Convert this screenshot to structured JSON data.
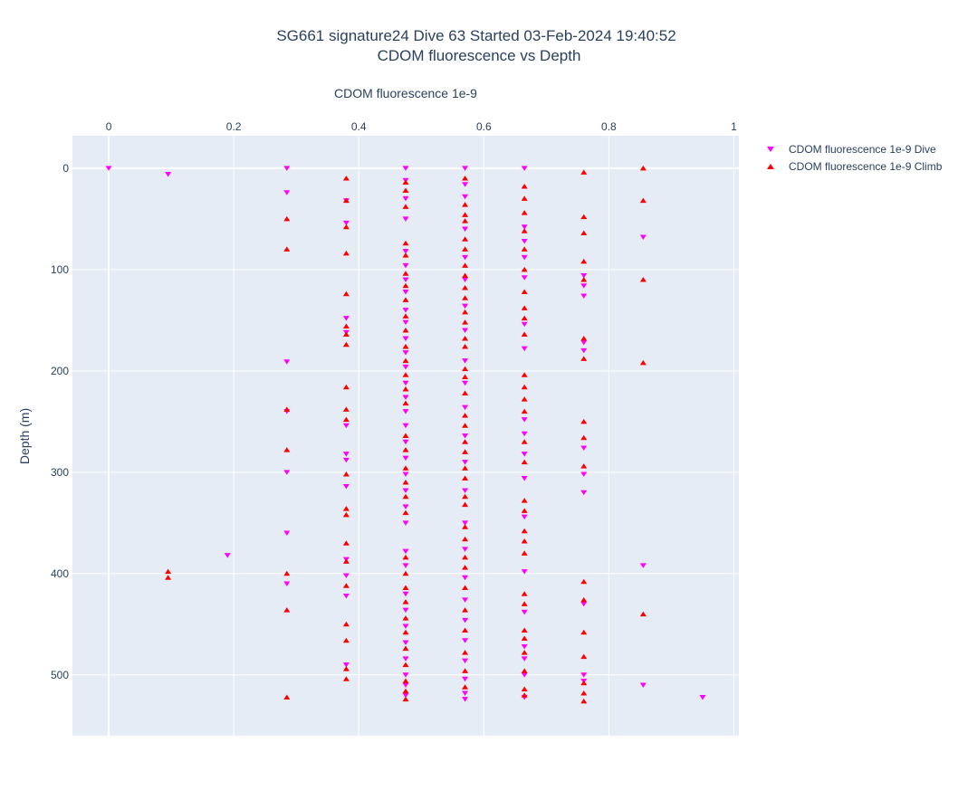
{
  "chart_data": {
    "type": "scatter",
    "title": [
      "SG661 signature24 Dive 63 Started 03-Feb-2024 19:40:52",
      "CDOM fluorescence vs Depth"
    ],
    "xlabel": "CDOM fluorescence 1e-9",
    "ylabel": "Depth (m)",
    "xlim": [
      -0.058,
      1.008
    ],
    "ylim": [
      560,
      -32
    ],
    "x_axis_position": "top",
    "y_reversed": true,
    "grid": true,
    "legend_position": "top-right",
    "xticks": [
      0,
      0.2,
      0.4,
      0.6,
      0.8,
      1
    ],
    "xtick_labels": [
      "0",
      "0.2",
      "0.4",
      "0.6",
      "0.8",
      "1"
    ],
    "yticks": [
      0,
      100,
      200,
      300,
      400,
      500
    ],
    "ytick_labels": [
      "0",
      "100",
      "200",
      "300",
      "400",
      "500"
    ],
    "series": [
      {
        "name": "CDOM fluorescence 1e-9 Dive",
        "color": "#ff00ff",
        "marker": "triangle-down",
        "points": [
          [
            0,
            0
          ],
          [
            0.095,
            6
          ],
          [
            0.19,
            382
          ],
          [
            0.285,
            0
          ],
          [
            0.285,
            24
          ],
          [
            0.285,
            191
          ],
          [
            0.285,
            240
          ],
          [
            0.285,
            300
          ],
          [
            0.285,
            360
          ],
          [
            0.285,
            410
          ],
          [
            0.38,
            32
          ],
          [
            0.38,
            54
          ],
          [
            0.38,
            148
          ],
          [
            0.38,
            162
          ],
          [
            0.38,
            254
          ],
          [
            0.38,
            282
          ],
          [
            0.38,
            288
          ],
          [
            0.38,
            314
          ],
          [
            0.38,
            386
          ],
          [
            0.38,
            402
          ],
          [
            0.38,
            422
          ],
          [
            0.38,
            490
          ],
          [
            0.475,
            0
          ],
          [
            0.475,
            12
          ],
          [
            0.475,
            30
          ],
          [
            0.475,
            50
          ],
          [
            0.475,
            82
          ],
          [
            0.475,
            96
          ],
          [
            0.475,
            110
          ],
          [
            0.475,
            122
          ],
          [
            0.475,
            140
          ],
          [
            0.475,
            152
          ],
          [
            0.475,
            168
          ],
          [
            0.475,
            182
          ],
          [
            0.475,
            196
          ],
          [
            0.475,
            212
          ],
          [
            0.475,
            226
          ],
          [
            0.475,
            240
          ],
          [
            0.475,
            254
          ],
          [
            0.475,
            270
          ],
          [
            0.475,
            286
          ],
          [
            0.475,
            302
          ],
          [
            0.475,
            318
          ],
          [
            0.475,
            334
          ],
          [
            0.475,
            350
          ],
          [
            0.475,
            378
          ],
          [
            0.475,
            392
          ],
          [
            0.475,
            420
          ],
          [
            0.475,
            436
          ],
          [
            0.475,
            452
          ],
          [
            0.475,
            468
          ],
          [
            0.475,
            484
          ],
          [
            0.475,
            500
          ],
          [
            0.475,
            510
          ],
          [
            0.475,
            520
          ],
          [
            0.57,
            0
          ],
          [
            0.57,
            16
          ],
          [
            0.57,
            28
          ],
          [
            0.57,
            60
          ],
          [
            0.57,
            88
          ],
          [
            0.57,
            110
          ],
          [
            0.57,
            136
          ],
          [
            0.57,
            160
          ],
          [
            0.57,
            190
          ],
          [
            0.57,
            212
          ],
          [
            0.57,
            236
          ],
          [
            0.57,
            264
          ],
          [
            0.57,
            290
          ],
          [
            0.57,
            318
          ],
          [
            0.57,
            350
          ],
          [
            0.57,
            376
          ],
          [
            0.57,
            404
          ],
          [
            0.57,
            426
          ],
          [
            0.57,
            446
          ],
          [
            0.57,
            466
          ],
          [
            0.57,
            486
          ],
          [
            0.57,
            504
          ],
          [
            0.57,
            518
          ],
          [
            0.57,
            524
          ],
          [
            0.665,
            0
          ],
          [
            0.665,
            58
          ],
          [
            0.665,
            72
          ],
          [
            0.665,
            88
          ],
          [
            0.665,
            108
          ],
          [
            0.665,
            154
          ],
          [
            0.665,
            178
          ],
          [
            0.665,
            248
          ],
          [
            0.665,
            262
          ],
          [
            0.665,
            282
          ],
          [
            0.665,
            306
          ],
          [
            0.665,
            344
          ],
          [
            0.665,
            398
          ],
          [
            0.665,
            438
          ],
          [
            0.665,
            472
          ],
          [
            0.665,
            484
          ],
          [
            0.665,
            500
          ],
          [
            0.665,
            522
          ],
          [
            0.76,
            106
          ],
          [
            0.76,
            116
          ],
          [
            0.76,
            126
          ],
          [
            0.76,
            172
          ],
          [
            0.76,
            180
          ],
          [
            0.76,
            276
          ],
          [
            0.76,
            302
          ],
          [
            0.76,
            320
          ],
          [
            0.76,
            430
          ],
          [
            0.76,
            500
          ],
          [
            0.76,
            506
          ],
          [
            0.855,
            68
          ],
          [
            0.855,
            392
          ],
          [
            0.855,
            510
          ],
          [
            0.95,
            522
          ]
        ]
      },
      {
        "name": "CDOM fluorescence 1e-9 Climb",
        "color": "#ff0000",
        "marker": "triangle-up",
        "points": [
          [
            0.095,
            398
          ],
          [
            0.095,
            404
          ],
          [
            0.285,
            50
          ],
          [
            0.285,
            80
          ],
          [
            0.285,
            238
          ],
          [
            0.285,
            278
          ],
          [
            0.285,
            400
          ],
          [
            0.285,
            436
          ],
          [
            0.285,
            522
          ],
          [
            0.38,
            10
          ],
          [
            0.38,
            32
          ],
          [
            0.38,
            58
          ],
          [
            0.38,
            84
          ],
          [
            0.38,
            124
          ],
          [
            0.38,
            156
          ],
          [
            0.38,
            164
          ],
          [
            0.38,
            174
          ],
          [
            0.38,
            216
          ],
          [
            0.38,
            238
          ],
          [
            0.38,
            248
          ],
          [
            0.38,
            302
          ],
          [
            0.38,
            336
          ],
          [
            0.38,
            342
          ],
          [
            0.38,
            370
          ],
          [
            0.38,
            388
          ],
          [
            0.38,
            412
          ],
          [
            0.38,
            450
          ],
          [
            0.38,
            466
          ],
          [
            0.38,
            494
          ],
          [
            0.38,
            504
          ],
          [
            0.475,
            14
          ],
          [
            0.475,
            22
          ],
          [
            0.475,
            38
          ],
          [
            0.475,
            74
          ],
          [
            0.475,
            86
          ],
          [
            0.475,
            104
          ],
          [
            0.475,
            116
          ],
          [
            0.475,
            130
          ],
          [
            0.475,
            146
          ],
          [
            0.475,
            160
          ],
          [
            0.475,
            176
          ],
          [
            0.475,
            190
          ],
          [
            0.475,
            204
          ],
          [
            0.475,
            218
          ],
          [
            0.475,
            232
          ],
          [
            0.475,
            264
          ],
          [
            0.475,
            278
          ],
          [
            0.475,
            296
          ],
          [
            0.475,
            310
          ],
          [
            0.475,
            324
          ],
          [
            0.475,
            340
          ],
          [
            0.475,
            384
          ],
          [
            0.475,
            400
          ],
          [
            0.475,
            414
          ],
          [
            0.475,
            428
          ],
          [
            0.475,
            444
          ],
          [
            0.475,
            458
          ],
          [
            0.475,
            474
          ],
          [
            0.475,
            490
          ],
          [
            0.475,
            506
          ],
          [
            0.475,
            516
          ],
          [
            0.475,
            524
          ],
          [
            0.57,
            10
          ],
          [
            0.57,
            36
          ],
          [
            0.57,
            46
          ],
          [
            0.57,
            52
          ],
          [
            0.57,
            70
          ],
          [
            0.57,
            80
          ],
          [
            0.57,
            96
          ],
          [
            0.57,
            106
          ],
          [
            0.57,
            118
          ],
          [
            0.57,
            128
          ],
          [
            0.57,
            142
          ],
          [
            0.57,
            152
          ],
          [
            0.57,
            168
          ],
          [
            0.57,
            176
          ],
          [
            0.57,
            198
          ],
          [
            0.57,
            206
          ],
          [
            0.57,
            222
          ],
          [
            0.57,
            244
          ],
          [
            0.57,
            254
          ],
          [
            0.57,
            270
          ],
          [
            0.57,
            280
          ],
          [
            0.57,
            296
          ],
          [
            0.57,
            306
          ],
          [
            0.57,
            324
          ],
          [
            0.57,
            332
          ],
          [
            0.57,
            354
          ],
          [
            0.57,
            366
          ],
          [
            0.57,
            384
          ],
          [
            0.57,
            394
          ],
          [
            0.57,
            414
          ],
          [
            0.57,
            436
          ],
          [
            0.57,
            456
          ],
          [
            0.57,
            478
          ],
          [
            0.57,
            496
          ],
          [
            0.57,
            512
          ],
          [
            0.665,
            18
          ],
          [
            0.665,
            30
          ],
          [
            0.665,
            44
          ],
          [
            0.665,
            62
          ],
          [
            0.665,
            80
          ],
          [
            0.665,
            100
          ],
          [
            0.665,
            122
          ],
          [
            0.665,
            138
          ],
          [
            0.665,
            148
          ],
          [
            0.665,
            164
          ],
          [
            0.665,
            204
          ],
          [
            0.665,
            216
          ],
          [
            0.665,
            228
          ],
          [
            0.665,
            240
          ],
          [
            0.665,
            270
          ],
          [
            0.665,
            290
          ],
          [
            0.665,
            328
          ],
          [
            0.665,
            338
          ],
          [
            0.665,
            358
          ],
          [
            0.665,
            368
          ],
          [
            0.665,
            380
          ],
          [
            0.665,
            420
          ],
          [
            0.665,
            430
          ],
          [
            0.665,
            456
          ],
          [
            0.665,
            464
          ],
          [
            0.665,
            478
          ],
          [
            0.665,
            496
          ],
          [
            0.665,
            514
          ],
          [
            0.665,
            520
          ],
          [
            0.76,
            4
          ],
          [
            0.76,
            48
          ],
          [
            0.76,
            64
          ],
          [
            0.76,
            92
          ],
          [
            0.76,
            110
          ],
          [
            0.76,
            168
          ],
          [
            0.76,
            188
          ],
          [
            0.76,
            250
          ],
          [
            0.76,
            266
          ],
          [
            0.76,
            294
          ],
          [
            0.76,
            408
          ],
          [
            0.76,
            426
          ],
          [
            0.76,
            458
          ],
          [
            0.76,
            482
          ],
          [
            0.76,
            508
          ],
          [
            0.76,
            518
          ],
          [
            0.76,
            526
          ],
          [
            0.855,
            0
          ],
          [
            0.855,
            32
          ],
          [
            0.855,
            110
          ],
          [
            0.855,
            192
          ],
          [
            0.855,
            440
          ]
        ]
      }
    ]
  }
}
